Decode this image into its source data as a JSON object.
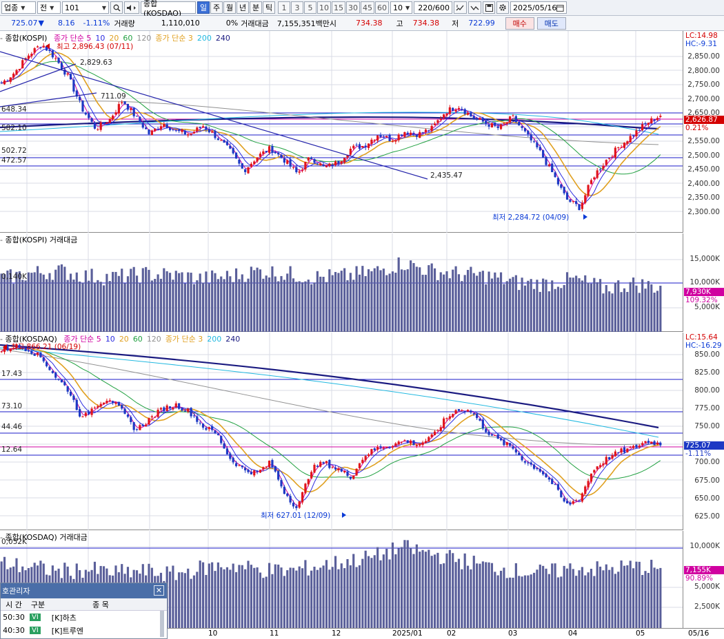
{
  "toolbar": {
    "category": "업종",
    "market": "전",
    "code": "101",
    "name": "종합(KOSDAQ)",
    "periods": [
      "일",
      "주",
      "월",
      "년",
      "분",
      "틱"
    ],
    "active_period": "일",
    "intervals": [
      "1",
      "3",
      "5",
      "10",
      "15",
      "30",
      "45",
      "60"
    ],
    "interval_select": "10",
    "count": "220",
    "count_total": "/600",
    "date": "2025/05/16",
    "icons": [
      "search-icon",
      "speaker-icon",
      "crosshair-icon",
      "chart-type-icon",
      "save-icon",
      "gear-icon",
      "calendar-icon"
    ]
  },
  "info": {
    "price": "725.07",
    "direction": "▼",
    "change": "8.16",
    "change_pct": "-1.11%",
    "volume_label": "거래량",
    "volume": "1,110,010",
    "volume_pct": "0%",
    "amount_label": "거래대금",
    "amount": "7,155,351백만",
    "open_label": "시",
    "open": "734.38",
    "high_label": "고",
    "high": "734.38",
    "low_label": "저",
    "low": "722.99",
    "buy_label": "매수",
    "sell_label": "매도"
  },
  "colors": {
    "up": "#e0161c",
    "down": "#1d39c4",
    "ma5": "#d000a0",
    "ma10": "#2a2ae0",
    "ma20": "#e0a020",
    "ma60": "#20a040",
    "ma120": "#909090",
    "ma200": "#20b8e0",
    "ma240": "#1a1a80",
    "volume_bar": "#5a5f9a",
    "hline": "#1a1ac8",
    "hline_current": "#d000a0"
  },
  "kospi": {
    "title_prefix": "종합(KOSPI)",
    "legend": [
      {
        "text": "종가 단순 5",
        "color": "#d000a0"
      },
      {
        "text": "10",
        "color": "#2a2ae0"
      },
      {
        "text": "20",
        "color": "#e0a020"
      },
      {
        "text": "60",
        "color": "#20a040"
      },
      {
        "text": "120",
        "color": "#909090"
      },
      {
        "text": "종가 단순 3",
        "color": "#e0a020"
      },
      {
        "text": "200",
        "color": "#20b8e0"
      },
      {
        "text": "240",
        "color": "#1a1a80"
      }
    ],
    "lc": "LC:14.98",
    "hc": "HC:-9.31",
    "current": "2,626.87",
    "current_pct": "0.21%",
    "y_ticks": [
      "2,850.00",
      "2,800.00",
      "2,750.00",
      "2,700.00",
      "2,650.00",
      "2,550.00",
      "2,500.00",
      "2,450.00",
      "2,400.00",
      "2,350.00",
      "2,300.00"
    ],
    "levels": [
      "648.34",
      "582.10",
      "502.72",
      "472.57"
    ],
    "annotations": {
      "high": "최고 2,896.43 (07/11)",
      "a1": "2,829.63",
      "a2": "711.09",
      "a3": "2,435.47",
      "low": "최저 2,284.72 (04/09)"
    }
  },
  "kospi_vol": {
    "title": "종합(KOSPI) 거래대금",
    "level": "0,140K",
    "y_ticks": [
      "15,000K",
      "10,000K",
      "5,000K"
    ],
    "current": "7,930K",
    "current_pct": "109.32%"
  },
  "kosdaq": {
    "title_prefix": "종합(KOSDAQ)",
    "legend": [
      {
        "text": "종가 단순 5",
        "color": "#d000a0"
      },
      {
        "text": "10",
        "color": "#2a2ae0"
      },
      {
        "text": "20",
        "color": "#e0a020"
      },
      {
        "text": "60",
        "color": "#20a040"
      },
      {
        "text": "120",
        "color": "#909090"
      },
      {
        "text": "종가 단순 3",
        "color": "#e0a020"
      },
      {
        "text": "200",
        "color": "#20b8e0"
      },
      {
        "text": "240",
        "color": "#1a1a80"
      }
    ],
    "lc": "LC:15.64",
    "hc": "HC:-16.29",
    "current": "725.07",
    "current_pct": "-1.11%",
    "y_ticks": [
      "850.00",
      "825.00",
      "800.00",
      "775.00",
      "750.00",
      "700.00",
      "675.00",
      "650.00",
      "625.00"
    ],
    "levels": [
      "17.43",
      "73.10",
      "44.46",
      "12.64"
    ],
    "annotations": {
      "high": "최고 866.21 (06/19)",
      "low": "최저 627.01 (12/09)"
    }
  },
  "kosdaq_vol": {
    "title": "종합(KOSDAQ) 거래대금",
    "level": "0,052K",
    "y_ticks": [
      "10,000K",
      "5,000K",
      "2,500K"
    ],
    "current": "7,155K",
    "current_pct": "90.89%"
  },
  "x_axis": {
    "labels": [
      "10",
      "11",
      "12",
      "2025/01",
      "02",
      "03",
      "04",
      "05"
    ],
    "end_label": "05/16"
  },
  "popup": {
    "title": "호관리자",
    "columns": [
      "시 간",
      "구분",
      "종 목"
    ],
    "rows": [
      {
        "time": "50:30",
        "type": "VI",
        "name": "[K]하츠"
      },
      {
        "time": "40:30",
        "type": "VI",
        "name": "[K]트루엔"
      }
    ]
  },
  "chart_data": [
    {
      "type": "candlestick",
      "title": "종합(KOSPI)",
      "ylim": [
        2270,
        2900
      ],
      "series_note": "daily candles",
      "x_labels": [
        "10",
        "11",
        "12",
        "2025/01",
        "02",
        "03",
        "04",
        "05"
      ],
      "high": 2896.43,
      "high_date": "07/11",
      "low": 2284.72,
      "low_date": "04/09",
      "last": 2626.87
    },
    {
      "type": "bar",
      "title": "종합(KOSPI) 거래대금",
      "ylim": [
        0,
        18000
      ],
      "last": 7930
    },
    {
      "type": "candlestick",
      "title": "종합(KOSDAQ)",
      "ylim": [
        615,
        868
      ],
      "high": 866.21,
      "high_date": "06/19",
      "low": 627.01,
      "low_date": "12/09",
      "last": 725.07
    },
    {
      "type": "bar",
      "title": "종합(KOSDAQ) 거래대금",
      "ylim": [
        0,
        12000
      ],
      "last": 7155
    }
  ]
}
